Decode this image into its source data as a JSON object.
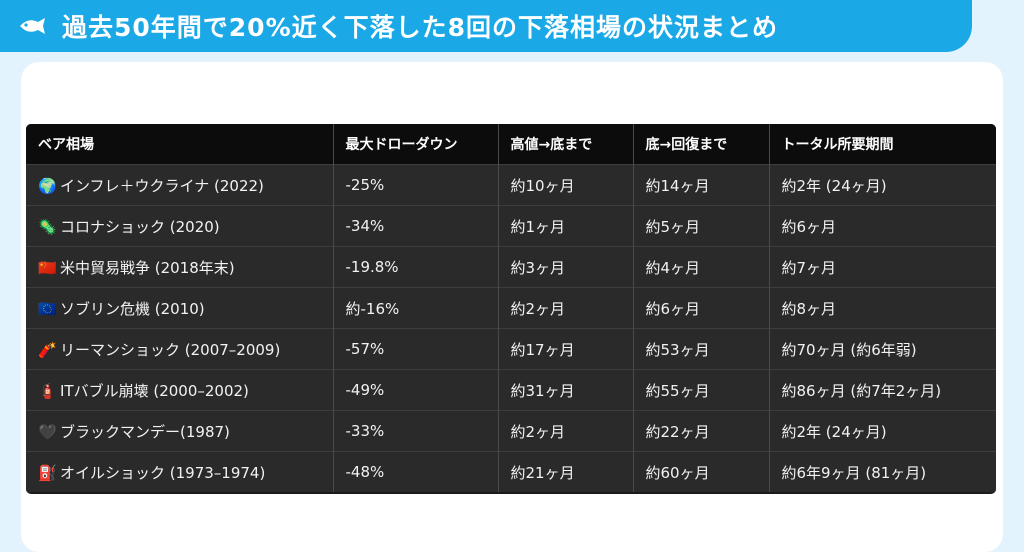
{
  "header": {
    "title": "過去50年間で20%近く下落した8回の下落相場の状況まとめ",
    "icon": "fish-icon"
  },
  "table": {
    "columns": [
      "ベア相場",
      "最大ドローダウン",
      "高値→底まで",
      "底→回復まで",
      "トータル所要期間"
    ],
    "rows": [
      {
        "emoji": "🌍",
        "market": "インフレ＋ウクライナ (2022)",
        "drawdown": "-25%",
        "peak_to_bottom": "約10ヶ月",
        "bottom_to_recovery": "約14ヶ月",
        "total": "約2年 (24ヶ月)"
      },
      {
        "emoji": "🦠",
        "market": "コロナショック (2020)",
        "drawdown": "-34%",
        "peak_to_bottom": "約1ヶ月",
        "bottom_to_recovery": "約5ヶ月",
        "total": "約6ヶ月"
      },
      {
        "emoji": "🇨🇳",
        "market": "米中貿易戦争 (2018年末)",
        "drawdown": "-19.8%",
        "peak_to_bottom": "約3ヶ月",
        "bottom_to_recovery": "約4ヶ月",
        "total": "約7ヶ月"
      },
      {
        "emoji": "🇪🇺",
        "market": "ソブリン危機 (2010)",
        "drawdown": "約-16%",
        "peak_to_bottom": "約2ヶ月",
        "bottom_to_recovery": "約6ヶ月",
        "total": "約8ヶ月"
      },
      {
        "emoji": "🧨",
        "market": "リーマンショック (2007–2009)",
        "drawdown": "-57%",
        "peak_to_bottom": "約17ヶ月",
        "bottom_to_recovery": "約53ヶ月",
        "total": "約70ヶ月 (約6年弱)"
      },
      {
        "emoji": "🧯",
        "market": "ITバブル崩壊 (2000–2002)",
        "drawdown": "-49%",
        "peak_to_bottom": "約31ヶ月",
        "bottom_to_recovery": "約55ヶ月",
        "total": "約86ヶ月 (約7年2ヶ月)"
      },
      {
        "emoji": "🖤",
        "market": "ブラックマンデー(1987)",
        "drawdown": "-33%",
        "peak_to_bottom": "約2ヶ月",
        "bottom_to_recovery": "約22ヶ月",
        "total": "約2年 (24ヶ月)"
      },
      {
        "emoji": "⛽",
        "market": "オイルショック (1973–1974)",
        "drawdown": "-48%",
        "peak_to_bottom": "約21ヶ月",
        "bottom_to_recovery": "約60ヶ月",
        "total": "約6年9ヶ月 (81ヶ月)"
      }
    ]
  }
}
